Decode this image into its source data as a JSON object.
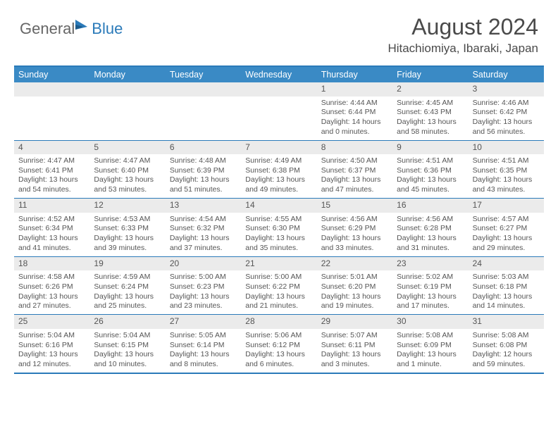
{
  "logo": {
    "general": "General",
    "blue": "Blue"
  },
  "title": {
    "month": "August 2024",
    "location": "Hitachiomiya, Ibaraki, Japan"
  },
  "colors": {
    "header_bg": "#3a8ac5",
    "header_text": "#ffffff",
    "border": "#2a7ab9",
    "num_bg": "#ebebeb",
    "text": "#555555",
    "logo_gray": "#666666",
    "logo_blue": "#2a7ab9"
  },
  "daynames": [
    "Sunday",
    "Monday",
    "Tuesday",
    "Wednesday",
    "Thursday",
    "Friday",
    "Saturday"
  ],
  "weeks": [
    [
      {
        "num": "",
        "sunrise": "",
        "sunset": "",
        "daylight": ""
      },
      {
        "num": "",
        "sunrise": "",
        "sunset": "",
        "daylight": ""
      },
      {
        "num": "",
        "sunrise": "",
        "sunset": "",
        "daylight": ""
      },
      {
        "num": "",
        "sunrise": "",
        "sunset": "",
        "daylight": ""
      },
      {
        "num": "1",
        "sunrise": "Sunrise: 4:44 AM",
        "sunset": "Sunset: 6:44 PM",
        "daylight": "Daylight: 14 hours and 0 minutes."
      },
      {
        "num": "2",
        "sunrise": "Sunrise: 4:45 AM",
        "sunset": "Sunset: 6:43 PM",
        "daylight": "Daylight: 13 hours and 58 minutes."
      },
      {
        "num": "3",
        "sunrise": "Sunrise: 4:46 AM",
        "sunset": "Sunset: 6:42 PM",
        "daylight": "Daylight: 13 hours and 56 minutes."
      }
    ],
    [
      {
        "num": "4",
        "sunrise": "Sunrise: 4:47 AM",
        "sunset": "Sunset: 6:41 PM",
        "daylight": "Daylight: 13 hours and 54 minutes."
      },
      {
        "num": "5",
        "sunrise": "Sunrise: 4:47 AM",
        "sunset": "Sunset: 6:40 PM",
        "daylight": "Daylight: 13 hours and 53 minutes."
      },
      {
        "num": "6",
        "sunrise": "Sunrise: 4:48 AM",
        "sunset": "Sunset: 6:39 PM",
        "daylight": "Daylight: 13 hours and 51 minutes."
      },
      {
        "num": "7",
        "sunrise": "Sunrise: 4:49 AM",
        "sunset": "Sunset: 6:38 PM",
        "daylight": "Daylight: 13 hours and 49 minutes."
      },
      {
        "num": "8",
        "sunrise": "Sunrise: 4:50 AM",
        "sunset": "Sunset: 6:37 PM",
        "daylight": "Daylight: 13 hours and 47 minutes."
      },
      {
        "num": "9",
        "sunrise": "Sunrise: 4:51 AM",
        "sunset": "Sunset: 6:36 PM",
        "daylight": "Daylight: 13 hours and 45 minutes."
      },
      {
        "num": "10",
        "sunrise": "Sunrise: 4:51 AM",
        "sunset": "Sunset: 6:35 PM",
        "daylight": "Daylight: 13 hours and 43 minutes."
      }
    ],
    [
      {
        "num": "11",
        "sunrise": "Sunrise: 4:52 AM",
        "sunset": "Sunset: 6:34 PM",
        "daylight": "Daylight: 13 hours and 41 minutes."
      },
      {
        "num": "12",
        "sunrise": "Sunrise: 4:53 AM",
        "sunset": "Sunset: 6:33 PM",
        "daylight": "Daylight: 13 hours and 39 minutes."
      },
      {
        "num": "13",
        "sunrise": "Sunrise: 4:54 AM",
        "sunset": "Sunset: 6:32 PM",
        "daylight": "Daylight: 13 hours and 37 minutes."
      },
      {
        "num": "14",
        "sunrise": "Sunrise: 4:55 AM",
        "sunset": "Sunset: 6:30 PM",
        "daylight": "Daylight: 13 hours and 35 minutes."
      },
      {
        "num": "15",
        "sunrise": "Sunrise: 4:56 AM",
        "sunset": "Sunset: 6:29 PM",
        "daylight": "Daylight: 13 hours and 33 minutes."
      },
      {
        "num": "16",
        "sunrise": "Sunrise: 4:56 AM",
        "sunset": "Sunset: 6:28 PM",
        "daylight": "Daylight: 13 hours and 31 minutes."
      },
      {
        "num": "17",
        "sunrise": "Sunrise: 4:57 AM",
        "sunset": "Sunset: 6:27 PM",
        "daylight": "Daylight: 13 hours and 29 minutes."
      }
    ],
    [
      {
        "num": "18",
        "sunrise": "Sunrise: 4:58 AM",
        "sunset": "Sunset: 6:26 PM",
        "daylight": "Daylight: 13 hours and 27 minutes."
      },
      {
        "num": "19",
        "sunrise": "Sunrise: 4:59 AM",
        "sunset": "Sunset: 6:24 PM",
        "daylight": "Daylight: 13 hours and 25 minutes."
      },
      {
        "num": "20",
        "sunrise": "Sunrise: 5:00 AM",
        "sunset": "Sunset: 6:23 PM",
        "daylight": "Daylight: 13 hours and 23 minutes."
      },
      {
        "num": "21",
        "sunrise": "Sunrise: 5:00 AM",
        "sunset": "Sunset: 6:22 PM",
        "daylight": "Daylight: 13 hours and 21 minutes."
      },
      {
        "num": "22",
        "sunrise": "Sunrise: 5:01 AM",
        "sunset": "Sunset: 6:20 PM",
        "daylight": "Daylight: 13 hours and 19 minutes."
      },
      {
        "num": "23",
        "sunrise": "Sunrise: 5:02 AM",
        "sunset": "Sunset: 6:19 PM",
        "daylight": "Daylight: 13 hours and 17 minutes."
      },
      {
        "num": "24",
        "sunrise": "Sunrise: 5:03 AM",
        "sunset": "Sunset: 6:18 PM",
        "daylight": "Daylight: 13 hours and 14 minutes."
      }
    ],
    [
      {
        "num": "25",
        "sunrise": "Sunrise: 5:04 AM",
        "sunset": "Sunset: 6:16 PM",
        "daylight": "Daylight: 13 hours and 12 minutes."
      },
      {
        "num": "26",
        "sunrise": "Sunrise: 5:04 AM",
        "sunset": "Sunset: 6:15 PM",
        "daylight": "Daylight: 13 hours and 10 minutes."
      },
      {
        "num": "27",
        "sunrise": "Sunrise: 5:05 AM",
        "sunset": "Sunset: 6:14 PM",
        "daylight": "Daylight: 13 hours and 8 minutes."
      },
      {
        "num": "28",
        "sunrise": "Sunrise: 5:06 AM",
        "sunset": "Sunset: 6:12 PM",
        "daylight": "Daylight: 13 hours and 6 minutes."
      },
      {
        "num": "29",
        "sunrise": "Sunrise: 5:07 AM",
        "sunset": "Sunset: 6:11 PM",
        "daylight": "Daylight: 13 hours and 3 minutes."
      },
      {
        "num": "30",
        "sunrise": "Sunrise: 5:08 AM",
        "sunset": "Sunset: 6:09 PM",
        "daylight": "Daylight: 13 hours and 1 minute."
      },
      {
        "num": "31",
        "sunrise": "Sunrise: 5:08 AM",
        "sunset": "Sunset: 6:08 PM",
        "daylight": "Daylight: 12 hours and 59 minutes."
      }
    ]
  ]
}
